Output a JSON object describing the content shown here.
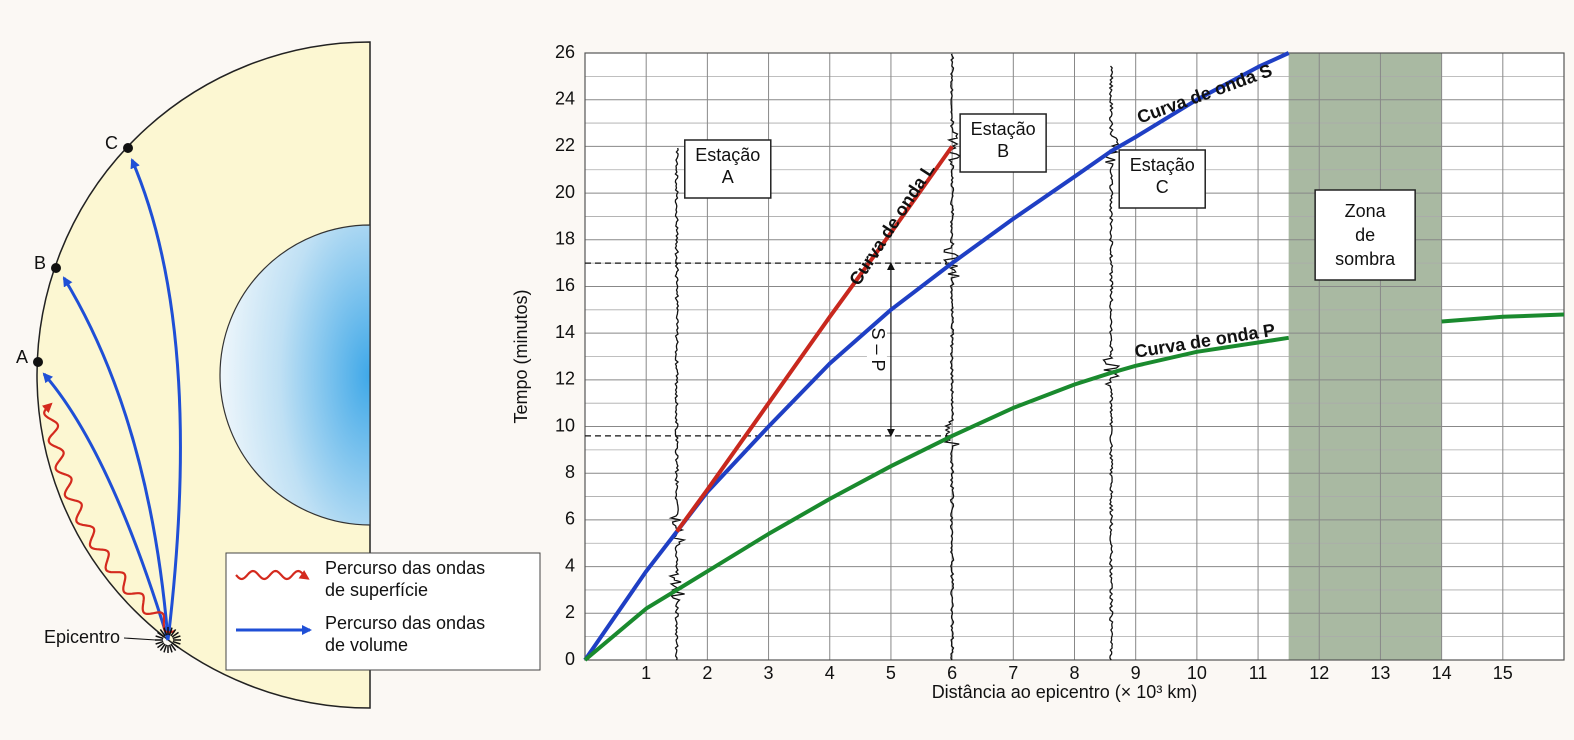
{
  "diagram": {
    "stations": [
      "A",
      "B",
      "C"
    ],
    "epicentre": "Epicentro",
    "legend": [
      {
        "lines": [
          "Percurso das ondas",
          "de superfície"
        ],
        "color": "#d42a1e"
      },
      {
        "lines": [
          "Percurso das ondas",
          "de volume"
        ],
        "color": "#1f4fd6"
      }
    ]
  },
  "chart_data": {
    "type": "line",
    "x_label": "Distância ao epicentro (× 10³ km)",
    "y_label": "Tempo (minutos)",
    "xlim": [
      0,
      16
    ],
    "ylim": [
      0,
      26
    ],
    "xticks": [
      1,
      2,
      3,
      4,
      5,
      6,
      7,
      8,
      9,
      10,
      11,
      12,
      13,
      14,
      15
    ],
    "yticks": [
      0,
      2,
      4,
      6,
      8,
      10,
      12,
      14,
      16,
      18,
      20,
      22,
      24,
      26
    ],
    "grid": true,
    "x": [
      0,
      1,
      1.5,
      2,
      3,
      4,
      5,
      6,
      7,
      8,
      8.6,
      9,
      10,
      11,
      11.5,
      12,
      13,
      14,
      15,
      16
    ],
    "series": [
      {
        "name": "Curva de onda S",
        "color": "#1f3fc4",
        "values": [
          0,
          3.8,
          5.5,
          7.2,
          10.0,
          12.7,
          15.0,
          17.0,
          18.9,
          20.7,
          21.8,
          22.4,
          24.0,
          25.4,
          26,
          null,
          null,
          null,
          null,
          null
        ]
      },
      {
        "name": "Curva de onda P",
        "color": "#1a8a2e",
        "values": [
          0,
          2.2,
          3.0,
          3.8,
          5.4,
          6.9,
          8.3,
          9.6,
          10.8,
          11.8,
          12.3,
          12.6,
          13.2,
          13.6,
          13.8,
          null,
          null,
          14.5,
          14.7,
          14.8
        ]
      },
      {
        "name": "Curva de onda L",
        "color": "#c8281e",
        "values": [
          null,
          null,
          5.5,
          7.3,
          11.0,
          14.7,
          18.3,
          22.0,
          null,
          null,
          null,
          null,
          null,
          null,
          null,
          null,
          null,
          null,
          null,
          null
        ]
      }
    ],
    "stations": [
      {
        "lines": [
          "Estação",
          "A"
        ],
        "x": 1.5
      },
      {
        "lines": [
          "Estação",
          "B"
        ],
        "x": 6
      },
      {
        "lines": [
          "Estação",
          "C"
        ],
        "x": 8.6
      }
    ],
    "shadow_zone": {
      "lines": [
        "Zona",
        "de",
        "sombra"
      ],
      "x_range": [
        11.5,
        14
      ]
    },
    "s_minus_p": {
      "label": "S – P",
      "x": 5,
      "from": 9.6,
      "to": 17
    }
  }
}
